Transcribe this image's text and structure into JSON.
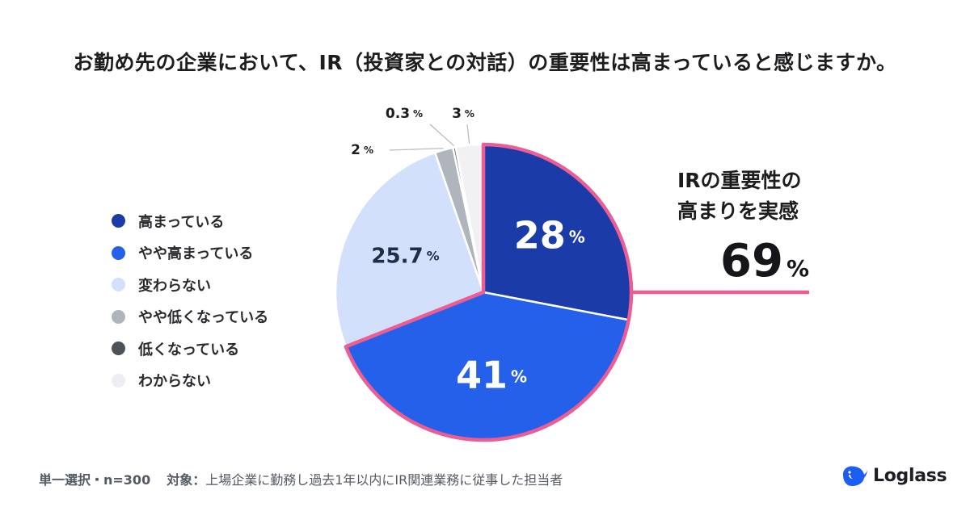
{
  "title": "お勤め先の企業において、IR（投資家との対話）の重要性は高まっていると感じますか。",
  "chart_data": {
    "type": "pie",
    "title": "お勤め先の企業において、IR（投資家との対話）の重要性は高まっていると感じますか。",
    "unit": "%",
    "start": "12 o'clock",
    "direction": "clockwise",
    "slices": [
      {
        "name": "高まっている",
        "value": 28,
        "label": "28",
        "color": "#1a3ba8",
        "label_position": "inside"
      },
      {
        "name": "やや高まっている",
        "value": 41,
        "label": "41",
        "color": "#2560ea",
        "label_position": "inside"
      },
      {
        "name": "変わらない",
        "value": 25.7,
        "label": "25.7",
        "color": "#d3e0fb",
        "label_position": "inside"
      },
      {
        "name": "やや低くなっている",
        "value": 2,
        "label": "2",
        "color": "#b0b5bd",
        "label_position": "outside"
      },
      {
        "name": "低くなっている",
        "value": 0.3,
        "label": "0.3",
        "color": "#4d5158",
        "label_position": "outside"
      },
      {
        "name": "わからない",
        "value": 3,
        "label": "3",
        "color": "#f1f1f4",
        "label_position": "outside"
      }
    ],
    "highlight": {
      "slices": [
        "高まっている",
        "やや高まっている"
      ],
      "outline_color": "#ec5e93",
      "caption_lines": [
        "IRの重要性の",
        "高まりを実感"
      ],
      "total": "69"
    },
    "legend_position": "left"
  },
  "footer": {
    "sample_label": "単一選択・n=300",
    "target_label": "対象：",
    "target_text": "上場企業に勤務し過去1年以内にIR関連業務に従事した担当者"
  },
  "brand": {
    "name": "Loglass",
    "logo_color": "#1a5ef2",
    "icon": "whale-logo-icon"
  }
}
